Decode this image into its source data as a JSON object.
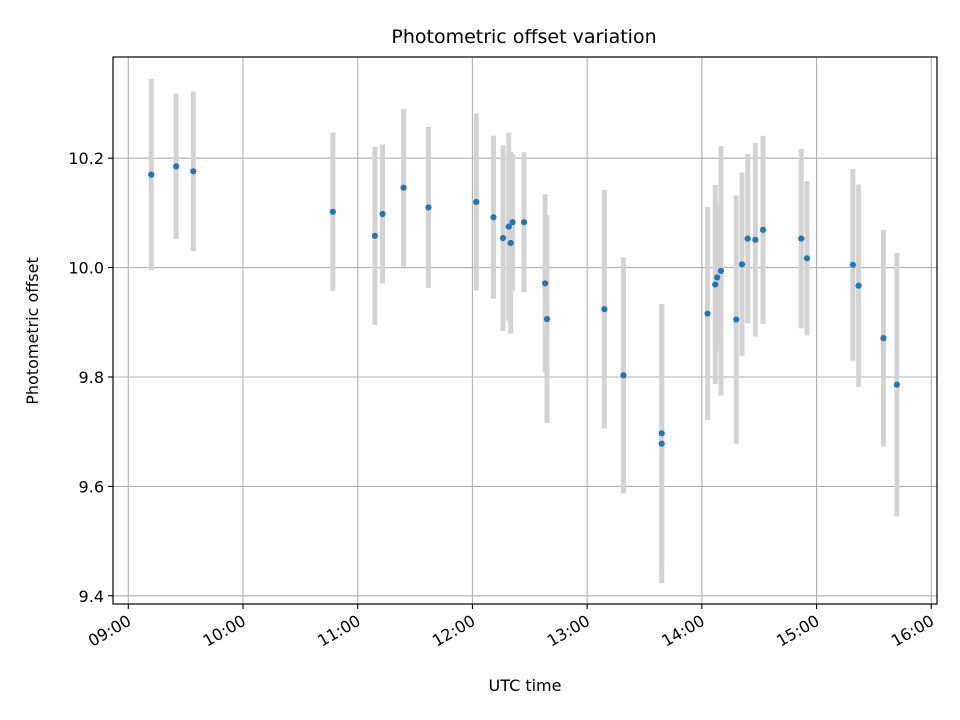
{
  "chart_data": {
    "type": "scatter",
    "title": "Photometric offset variation",
    "xlabel": "UTC time",
    "ylabel": "Photometric offset",
    "x_is_time": true,
    "xlim": [
      "08:52",
      "16:03"
    ],
    "ylim": [
      9.385,
      10.385
    ],
    "xticks": [
      "09:00",
      "10:00",
      "11:00",
      "12:00",
      "13:00",
      "14:00",
      "15:00",
      "16:00"
    ],
    "yticks": [
      9.4,
      9.6,
      9.8,
      10.0,
      10.2
    ],
    "ytick_labels": [
      "9.4",
      "9.6",
      "9.8",
      "10.0",
      "10.2"
    ],
    "grid": true,
    "colors": {
      "marker": "#1f77b4",
      "errorbar": "#d3d3d3",
      "grid": "#b0b0b0"
    },
    "points": [
      {
        "x": "09:12",
        "y": 10.17,
        "err": 0.175
      },
      {
        "x": "09:25",
        "y": 10.185,
        "err": 0.133
      },
      {
        "x": "09:34",
        "y": 10.176,
        "err": 0.146
      },
      {
        "x": "10:47",
        "y": 10.102,
        "err": 0.145
      },
      {
        "x": "11:09",
        "y": 10.058,
        "err": 0.163
      },
      {
        "x": "11:13",
        "y": 10.098,
        "err": 0.127
      },
      {
        "x": "11:24",
        "y": 10.146,
        "err": 0.144
      },
      {
        "x": "11:37",
        "y": 10.11,
        "err": 0.147
      },
      {
        "x": "12:02",
        "y": 10.12,
        "err": 0.162
      },
      {
        "x": "12:11",
        "y": 10.092,
        "err": 0.149
      },
      {
        "x": "12:16",
        "y": 10.054,
        "err": 0.17
      },
      {
        "x": "12:19",
        "y": 10.075,
        "err": 0.172
      },
      {
        "x": "12:20",
        "y": 10.045,
        "err": 0.166
      },
      {
        "x": "12:21",
        "y": 10.083,
        "err": 0.125
      },
      {
        "x": "12:27",
        "y": 10.083,
        "err": 0.128
      },
      {
        "x": "12:38",
        "y": 9.971,
        "err": 0.163
      },
      {
        "x": "12:39",
        "y": 9.906,
        "err": 0.19
      },
      {
        "x": "13:09",
        "y": 9.924,
        "err": 0.218
      },
      {
        "x": "13:19",
        "y": 9.803,
        "err": 0.216
      },
      {
        "x": "13:39",
        "y": 9.697,
        "err": 0.236
      },
      {
        "x": "13:39",
        "y": 9.678,
        "err": 0.255
      },
      {
        "x": "14:03",
        "y": 9.916,
        "err": 0.195
      },
      {
        "x": "14:07",
        "y": 9.969,
        "err": 0.182
      },
      {
        "x": "14:08",
        "y": 9.982,
        "err": 0.135
      },
      {
        "x": "14:10",
        "y": 9.994,
        "err": 0.228
      },
      {
        "x": "14:18",
        "y": 9.905,
        "err": 0.227
      },
      {
        "x": "14:21",
        "y": 10.006,
        "err": 0.168
      },
      {
        "x": "14:24",
        "y": 10.053,
        "err": 0.155
      },
      {
        "x": "14:28",
        "y": 10.051,
        "err": 0.177
      },
      {
        "x": "14:32",
        "y": 10.069,
        "err": 0.172
      },
      {
        "x": "14:52",
        "y": 10.053,
        "err": 0.164
      },
      {
        "x": "14:55",
        "y": 10.017,
        "err": 0.141
      },
      {
        "x": "15:19",
        "y": 10.005,
        "err": 0.175
      },
      {
        "x": "15:22",
        "y": 9.967,
        "err": 0.185
      },
      {
        "x": "15:35",
        "y": 9.871,
        "err": 0.198
      },
      {
        "x": "15:42",
        "y": 9.786,
        "err": 0.241
      }
    ]
  }
}
